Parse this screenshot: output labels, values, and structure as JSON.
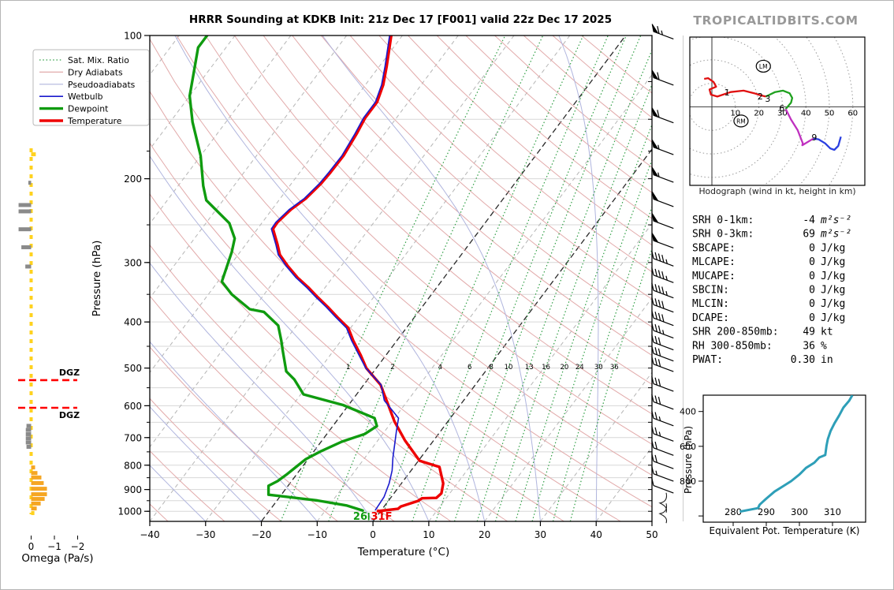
{
  "ui": {
    "title": "HRRR Sounding at KDKB Init: 21z Dec 17 [F001] valid 22z Dec 17 2025",
    "brand": "TROPICALTIDBITS.COM",
    "dgz_label": "DGZ",
    "surface": {
      "dewpoint_f": "26",
      "temp_f": "31F"
    },
    "legend": [
      {
        "label": "Sat. Mix. Ratio",
        "color": "#2f9e44",
        "dash": "1.5,2.8",
        "width": 1.3
      },
      {
        "label": "Dry Adiabats",
        "color": "#e2aaaa",
        "dash": "",
        "width": 1.2
      },
      {
        "label": "Pseudoadiabats",
        "color": "#b0b5de",
        "dash": "",
        "width": 1.2
      },
      {
        "label": "Wetbulb",
        "color": "#1a1acd",
        "dash": "",
        "width": 1.7
      },
      {
        "label": "Dewpoint",
        "color": "#0f9b0f",
        "dash": "",
        "width": 3.4
      },
      {
        "label": "Temperature",
        "color": "#ee0000",
        "dash": "",
        "width": 3.4
      }
    ]
  },
  "stats": {
    "rows": [
      {
        "label": "SRH 0-1km:",
        "value": "-4",
        "unit": "m²s⁻²",
        "color": "#000000"
      },
      {
        "label": "SRH 0-3km:",
        "value": "69",
        "unit": "m²s⁻²",
        "color": "#000000"
      },
      {
        "label": "SBCAPE:",
        "value": "0",
        "unit": "J/kg",
        "color": "#000000"
      },
      {
        "label": "MLCAPE:",
        "value": "0",
        "unit": "J/kg",
        "color": "#000000"
      },
      {
        "label": "MUCAPE:",
        "value": "0",
        "unit": "J/kg",
        "color": "#000000"
      },
      {
        "label": "SBCIN:",
        "value": "0",
        "unit": "J/kg",
        "color": "#000000"
      },
      {
        "label": "MLCIN:",
        "value": "0",
        "unit": "J/kg",
        "color": "#000000"
      },
      {
        "label": "DCAPE:",
        "value": "0",
        "unit": "J/kg",
        "color": "#000000"
      },
      {
        "label": "SHR 200-850mb:",
        "value": "49",
        "unit": "kt",
        "color": "#b22222"
      },
      {
        "label": "RH 300-850mb:",
        "value": "36",
        "unit": "%",
        "color": "#a0622d"
      },
      {
        "label": "PWAT:",
        "value": "0.30",
        "unit": "in",
        "color": "#000000"
      }
    ]
  },
  "chart_data": {
    "skewt": {
      "type": "line",
      "xlabel": "Temperature (°C)",
      "ylabel": "Pressure (hPa)",
      "xlim": [
        -40,
        50
      ],
      "plim": [
        100,
        1050
      ],
      "x_ticks": [
        -40,
        -30,
        -20,
        -10,
        0,
        10,
        20,
        30,
        40,
        50
      ],
      "p_ticks": [
        100,
        200,
        300,
        400,
        500,
        600,
        700,
        800,
        900,
        1000
      ],
      "mixing_ratio_labels": [
        1,
        2,
        4,
        6,
        8,
        10,
        13,
        16,
        20,
        24,
        30,
        36
      ],
      "dgz_pressures": [
        530,
        606
      ],
      "series": [
        {
          "name": "temperature",
          "color": "#ee0000",
          "width": 3.4,
          "points": [
            [
              100,
              -62
            ],
            [
              116,
              -58.7
            ],
            [
              127,
              -56.8
            ],
            [
              138,
              -55.6
            ],
            [
              149,
              -55.6
            ],
            [
              161,
              -55
            ],
            [
              179,
              -54.4
            ],
            [
              194,
              -54.5
            ],
            [
              205,
              -54.7
            ],
            [
              220,
              -55.4
            ],
            [
              232,
              -56.6
            ],
            [
              247,
              -57.3
            ],
            [
              255,
              -57.2
            ],
            [
              275,
              -54.3
            ],
            [
              289,
              -52.5
            ],
            [
              305,
              -49.6
            ],
            [
              323,
              -46.2
            ],
            [
              338,
              -43.1
            ],
            [
              355,
              -40
            ],
            [
              372,
              -36.9
            ],
            [
              391,
              -33.8
            ],
            [
              412,
              -30.4
            ],
            [
              438,
              -27.8
            ],
            [
              470,
              -24.5
            ],
            [
              500,
              -21.8
            ],
            [
              542,
              -17
            ],
            [
              585,
              -13.8
            ],
            [
              647,
              -9.6
            ],
            [
              709,
              -5.2
            ],
            [
              783,
              0.2
            ],
            [
              807,
              4.6
            ],
            [
              874,
              7.5
            ],
            [
              917,
              8.5
            ],
            [
              937,
              8.2
            ],
            [
              939,
              5.7
            ],
            [
              951,
              5.3
            ],
            [
              977,
              3
            ],
            [
              988,
              2.8
            ],
            [
              999,
              -0.5
            ]
          ]
        },
        {
          "name": "dewpoint",
          "color": "#0f9b0f",
          "width": 3.4,
          "points": [
            [
              100,
              -95
            ],
            [
              106,
              -95
            ],
            [
              122,
              -92
            ],
            [
              134,
              -90
            ],
            [
              152,
              -86
            ],
            [
              179,
              -80
            ],
            [
              207,
              -75.5
            ],
            [
              222,
              -73
            ],
            [
              248,
              -65.8
            ],
            [
              267,
              -62.8
            ],
            [
              285,
              -61.5
            ],
            [
              329,
              -59.3
            ],
            [
              350,
              -55.8
            ],
            [
              376,
              -50.6
            ],
            [
              381,
              -47.7
            ],
            [
              407,
              -43.3
            ],
            [
              438,
              -40.7
            ],
            [
              457,
              -39.3
            ],
            [
              508,
              -35.7
            ],
            [
              528,
              -33.2
            ],
            [
              568,
              -29.5
            ],
            [
              598,
              -21
            ],
            [
              637,
              -13.6
            ],
            [
              662,
              -12.1
            ],
            [
              688,
              -13.2
            ],
            [
              714,
              -16.3
            ],
            [
              747,
              -18.7
            ],
            [
              777,
              -20.4
            ],
            [
              807,
              -21.1
            ],
            [
              838,
              -21.8
            ],
            [
              864,
              -22.5
            ],
            [
              884,
              -23.5
            ],
            [
              923,
              -22.3
            ],
            [
              933,
              -18.5
            ],
            [
              949,
              -12.8
            ],
            [
              972,
              -6.9
            ],
            [
              996,
              -3.3
            ]
          ]
        },
        {
          "name": "wetbulb",
          "color": "#1a1acd",
          "width": 1.6,
          "points": [
            [
              100,
              -62.3
            ],
            [
              116,
              -59
            ],
            [
              127,
              -57.1
            ],
            [
              138,
              -55.9
            ],
            [
              149,
              -55.9
            ],
            [
              161,
              -55.3
            ],
            [
              179,
              -54.7
            ],
            [
              194,
              -54.8
            ],
            [
              205,
              -55
            ],
            [
              220,
              -55.7
            ],
            [
              232,
              -56.9
            ],
            [
              247,
              -57.6
            ],
            [
              255,
              -57.5
            ],
            [
              275,
              -54.6
            ],
            [
              289,
              -52.8
            ],
            [
              305,
              -49.9
            ],
            [
              323,
              -46.5
            ],
            [
              338,
              -43.4
            ],
            [
              355,
              -40.3
            ],
            [
              372,
              -37.2
            ],
            [
              391,
              -34.1
            ],
            [
              412,
              -30.7
            ],
            [
              438,
              -28.1
            ],
            [
              470,
              -24.8
            ],
            [
              500,
              -21.9
            ],
            [
              542,
              -16.9
            ],
            [
              585,
              -14.2
            ],
            [
              637,
              -9.3
            ],
            [
              679,
              -7.9
            ],
            [
              722,
              -6.5
            ],
            [
              771,
              -5
            ],
            [
              821,
              -3.4
            ],
            [
              874,
              -2.2
            ],
            [
              933,
              -1.3
            ],
            [
              993,
              -1.1
            ]
          ]
        }
      ],
      "winds_p_kt": [
        [
          100,
          65
        ],
        [
          125,
          60
        ],
        [
          150,
          60
        ],
        [
          175,
          55
        ],
        [
          200,
          55
        ],
        [
          225,
          50
        ],
        [
          250,
          50
        ],
        [
          275,
          50
        ],
        [
          300,
          45
        ],
        [
          325,
          45
        ],
        [
          350,
          45
        ],
        [
          375,
          40
        ],
        [
          400,
          40
        ],
        [
          425,
          35
        ],
        [
          450,
          30
        ],
        [
          475,
          30
        ],
        [
          500,
          30
        ],
        [
          550,
          30
        ],
        [
          600,
          30
        ],
        [
          650,
          25
        ],
        [
          700,
          25
        ],
        [
          750,
          20
        ],
        [
          800,
          20
        ],
        [
          850,
          15
        ],
        [
          900,
          10
        ],
        [
          950,
          5
        ],
        [
          1000,
          5
        ]
      ]
    },
    "omega": {
      "type": "bar",
      "xlabel": "Omega (Pa/s)",
      "tick_values": [
        0,
        -1,
        -2
      ],
      "tick_labels": [
        "0",
        "−1",
        "−2"
      ],
      "bars": [
        {
          "p": 176,
          "value": -0.2,
          "color": "#ffd21e"
        },
        {
          "p": 202,
          "value": 0.12,
          "color": "#8a8a8a"
        },
        {
          "p": 225,
          "value": 0.54,
          "color": "#8a8a8a"
        },
        {
          "p": 232,
          "value": 0.54,
          "color": "#8a8a8a"
        },
        {
          "p": 253,
          "value": 0.54,
          "color": "#8a8a8a"
        },
        {
          "p": 276,
          "value": 0.42,
          "color": "#8a8a8a"
        },
        {
          "p": 303,
          "value": 0.25,
          "color": "#8a8a8a"
        },
        {
          "p": 655,
          "value": 0.2,
          "color": "#8a8a8a"
        },
        {
          "p": 668,
          "value": 0.23,
          "color": "#8a8a8a"
        },
        {
          "p": 682,
          "value": 0.23,
          "color": "#8a8a8a"
        },
        {
          "p": 696,
          "value": 0.23,
          "color": "#8a8a8a"
        },
        {
          "p": 710,
          "value": 0.23,
          "color": "#8a8a8a"
        },
        {
          "p": 725,
          "value": 0.2,
          "color": "#8a8a8a"
        },
        {
          "p": 801,
          "value": -0.17,
          "color": "#f5a623"
        },
        {
          "p": 823,
          "value": -0.27,
          "color": "#f5a623"
        },
        {
          "p": 841,
          "value": -0.44,
          "color": "#f5a623"
        },
        {
          "p": 864,
          "value": -0.54,
          "color": "#f5a623"
        },
        {
          "p": 888,
          "value": -0.68,
          "color": "#f5a623"
        },
        {
          "p": 912,
          "value": -0.68,
          "color": "#f5a623"
        },
        {
          "p": 933,
          "value": -0.58,
          "color": "#f5a623"
        },
        {
          "p": 954,
          "value": -0.41,
          "color": "#f5a623"
        },
        {
          "p": 977,
          "value": -0.24,
          "color": "#f5a623"
        },
        {
          "p": 999,
          "value": -0.14,
          "color": "#ffd21e"
        }
      ]
    },
    "hodograph": {
      "type": "line",
      "caption": "Hodograph (wind in kt, height in km)",
      "rings_kt": [
        10,
        20,
        30,
        40,
        50,
        60
      ],
      "segments": [
        {
          "name": "0-3km",
          "color": "#e01010",
          "points": [
            [
              -3.3,
              11.9
            ],
            [
              -1.6,
              12.2
            ],
            [
              0.7,
              10.6
            ],
            [
              1.8,
              8.6
            ],
            [
              -1,
              7.4
            ],
            [
              -0.4,
              5.2
            ],
            [
              2.3,
              4.4
            ],
            [
              8,
              6.3
            ],
            [
              13.5,
              6.9
            ],
            [
              18,
              5.8
            ],
            [
              20.8,
              4.9
            ],
            [
              23,
              4.4
            ]
          ]
        },
        {
          "name": "3-6km",
          "color": "#1fa11f",
          "points": [
            [
              23,
              4.4
            ],
            [
              26.9,
              6.3
            ],
            [
              30.3,
              6.9
            ],
            [
              33.1,
              5.8
            ],
            [
              34.2,
              3.8
            ],
            [
              33.7,
              1.8
            ],
            [
              31.4,
              -0.9
            ]
          ]
        },
        {
          "name": "6-9km",
          "color": "#bf30bf",
          "points": [
            [
              31.4,
              -0.9
            ],
            [
              33.7,
              -5.4
            ],
            [
              36.5,
              -9.9
            ],
            [
              38.7,
              -15.5
            ],
            [
              38.5,
              -16.3
            ],
            [
              43.2,
              -13.5
            ]
          ]
        },
        {
          "name": "9-12km",
          "color": "#2a3fe0",
          "points": [
            [
              43.2,
              -13.5
            ],
            [
              45.4,
              -13.8
            ],
            [
              48.2,
              -15.5
            ],
            [
              50.4,
              -17.7
            ],
            [
              52.1,
              -18.3
            ],
            [
              53.8,
              -16.6
            ],
            [
              54.9,
              -12.7
            ]
          ]
        }
      ],
      "height_labels": [
        {
          "text": "1",
          "u": 6.4,
          "v": 6.2
        },
        {
          "text": "2",
          "u": 20.6,
          "v": 4.5
        },
        {
          "text": "3",
          "u": 23.8,
          "v": 3.5
        },
        {
          "text": "6",
          "u": 29.8,
          "v": -0.5
        },
        {
          "text": "9",
          "u": 43.6,
          "v": -12.9
        }
      ],
      "markers": [
        {
          "text": "LM",
          "u": 21.9,
          "v": 17.3
        },
        {
          "text": "RM",
          "u": 12.4,
          "v": -6
        }
      ]
    },
    "thetae": {
      "type": "line",
      "xlabel": "Equivalent Pot. Temperature (K)",
      "ylabel": "Pressure (hPa)",
      "x_ticks": [
        280,
        290,
        300,
        310
      ],
      "y_ticks": [
        400,
        600,
        800
      ],
      "color": "#2e9fb8",
      "points": [
        [
          282,
          975
        ],
        [
          287.5,
          955
        ],
        [
          288,
          935
        ],
        [
          290,
          900
        ],
        [
          292.5,
          860
        ],
        [
          295,
          830
        ],
        [
          297.5,
          800
        ],
        [
          300,
          762
        ],
        [
          302,
          724
        ],
        [
          304.5,
          694
        ],
        [
          306,
          664
        ],
        [
          307.8,
          650
        ],
        [
          308.2,
          596
        ],
        [
          308.6,
          558
        ],
        [
          309.4,
          513
        ],
        [
          310.6,
          468
        ],
        [
          312,
          423
        ],
        [
          313.3,
          377
        ],
        [
          315,
          339
        ],
        [
          316,
          306
        ]
      ]
    }
  }
}
